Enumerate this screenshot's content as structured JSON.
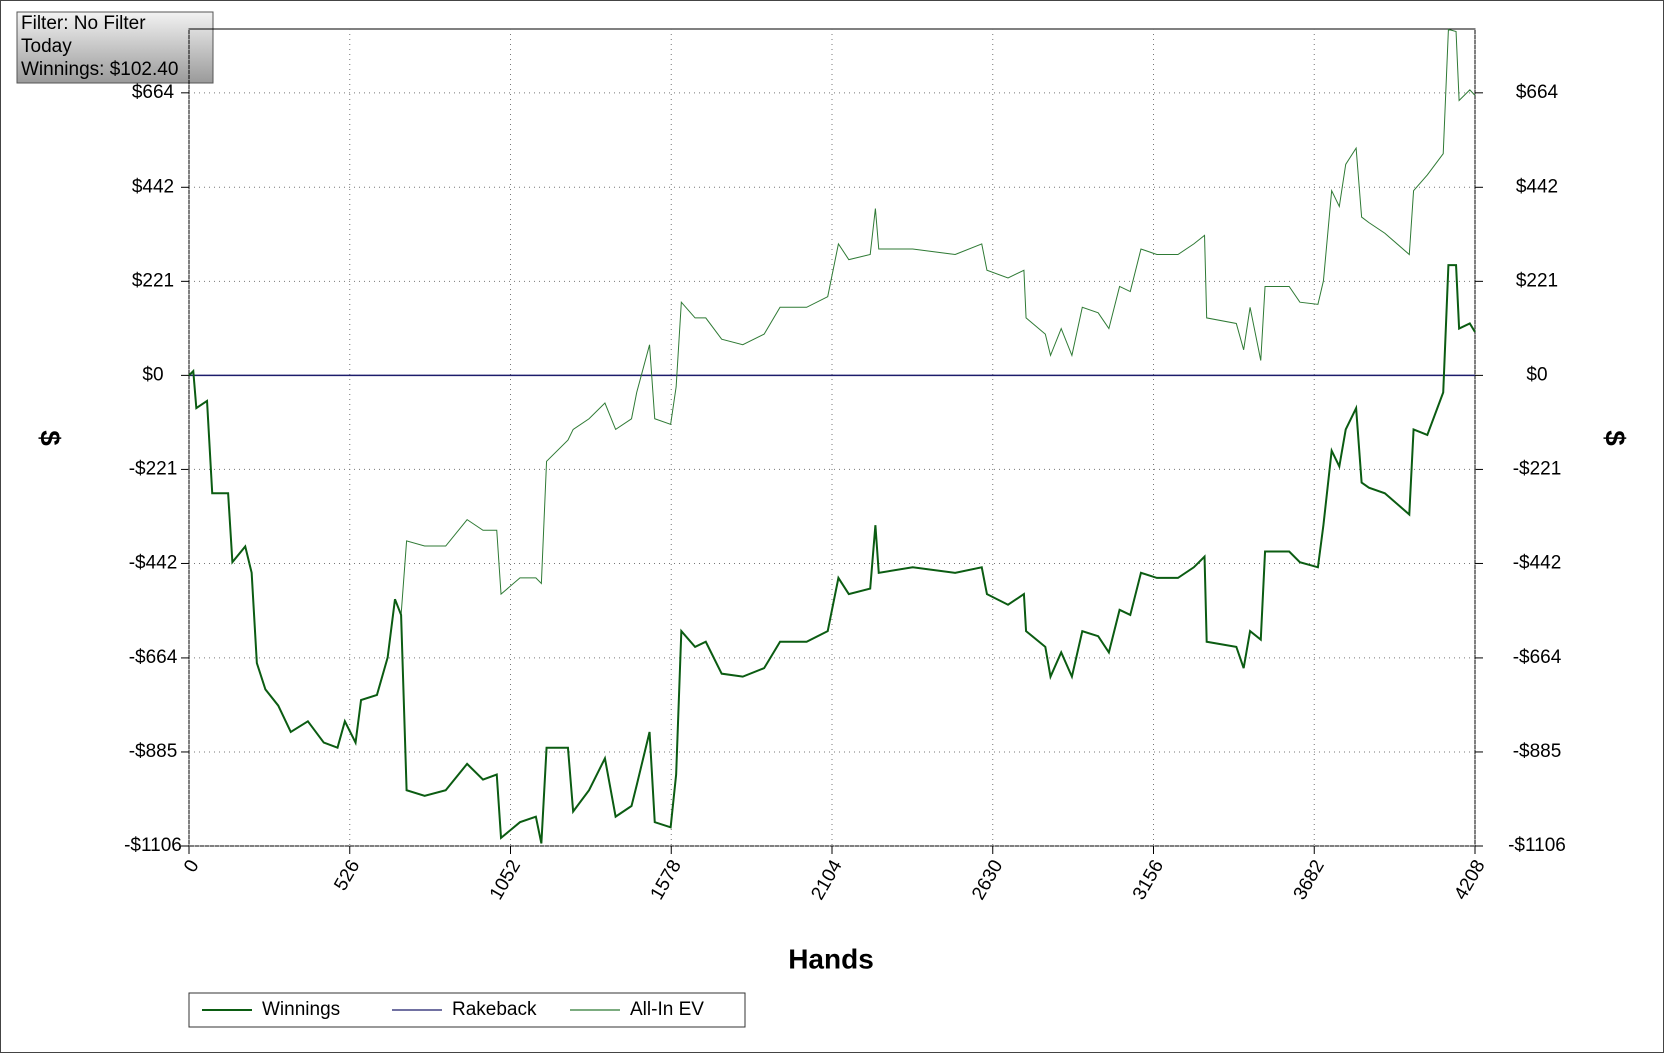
{
  "chart_data": {
    "type": "line",
    "annotation": [
      "Filter: No Filter",
      "Today",
      "Winnings: $102.40"
    ],
    "xlabel": "Hands",
    "ylabel": "$",
    "xlim": [
      0,
      4208
    ],
    "xticks": [
      0,
      526,
      1052,
      1578,
      2104,
      2630,
      3156,
      3682,
      4208
    ],
    "ylim": [
      -1106,
      814
    ],
    "yticks": [
      {
        "value": -1106,
        "label": "-$1106"
      },
      {
        "value": -885,
        "label": "-$885"
      },
      {
        "value": -664,
        "label": "-$664"
      },
      {
        "value": -442,
        "label": "-$442"
      },
      {
        "value": -221,
        "label": "-$221"
      },
      {
        "value": 0,
        "label": "$0"
      },
      {
        "value": 221,
        "label": "$221"
      },
      {
        "value": 442,
        "label": "$442"
      },
      {
        "value": 664,
        "label": "$664"
      }
    ],
    "grid": true,
    "x": [
      0,
      14,
      24,
      59,
      76,
      128,
      142,
      184,
      205,
      222,
      250,
      292,
      333,
      389,
      441,
      486,
      510,
      545,
      563,
      615,
      650,
      674,
      694,
      712,
      771,
      840,
      910,
      962,
      1007,
      1021,
      1083,
      1135,
      1153,
      1170,
      1240,
      1257,
      1309,
      1361,
      1396,
      1448,
      1465,
      1507,
      1524,
      1576,
      1594,
      1611,
      1656,
      1691,
      1743,
      1812,
      1882,
      1934,
      2021,
      2090,
      2125,
      2159,
      2229,
      2246,
      2257,
      2368,
      2507,
      2594,
      2611,
      2680,
      2732,
      2739,
      2802,
      2819,
      2854,
      2889,
      2923,
      2975,
      3010,
      3045,
      3080,
      3115,
      3167,
      3236,
      3288,
      3323,
      3330,
      3427,
      3451,
      3472,
      3507,
      3521,
      3600,
      3635,
      3694,
      3712,
      3739,
      3764,
      3785,
      3819,
      3837,
      3861,
      3913,
      3993,
      4007,
      4052,
      4104,
      4121,
      4146,
      4156,
      4191,
      4208
    ],
    "series": [
      {
        "name": "Winnings",
        "color": "#0b5c12",
        "values": [
          0,
          10,
          -77,
          -60,
          -277,
          -277,
          -439,
          -402,
          -464,
          -676,
          -738,
          -776,
          -838,
          -813,
          -863,
          -875,
          -813,
          -863,
          -763,
          -751,
          -663,
          -526,
          -563,
          -975,
          -988,
          -975,
          -913,
          -950,
          -938,
          -1087,
          -1050,
          -1037,
          -1100,
          -875,
          -875,
          -1025,
          -975,
          -900,
          -1037,
          -1012,
          -963,
          -838,
          -1050,
          -1062,
          -938,
          -601,
          -638,
          -626,
          -701,
          -708,
          -688,
          -626,
          -626,
          -601,
          -476,
          -514,
          -501,
          -352,
          -464,
          -451,
          -464,
          -451,
          -514,
          -539,
          -514,
          -601,
          -638,
          -708,
          -651,
          -708,
          -601,
          -613,
          -651,
          -551,
          -563,
          -464,
          -476,
          -476,
          -451,
          -426,
          -626,
          -638,
          -688,
          -601,
          -621,
          -414,
          -414,
          -439,
          -451,
          -352,
          -177,
          -214,
          -127,
          -77,
          -252,
          -264,
          -277,
          -327,
          -127,
          -140,
          -40,
          259,
          259,
          110,
          122,
          102
        ]
      },
      {
        "name": "Rakeback",
        "color": "#1c1c6b",
        "values": [
          0,
          0,
          0,
          0,
          0,
          0,
          0,
          0,
          0,
          0,
          0,
          0,
          0,
          0,
          0,
          0,
          0,
          0,
          0,
          0,
          0,
          0,
          0,
          0,
          0,
          0,
          0,
          0,
          0,
          0,
          0,
          0,
          0,
          0,
          0,
          0,
          0,
          0,
          0,
          0,
          0,
          0,
          0,
          0,
          0,
          0,
          0,
          0,
          0,
          0,
          0,
          0,
          0,
          0,
          0,
          0,
          0,
          0,
          0,
          0,
          0,
          0,
          0,
          0,
          0,
          0,
          0,
          0,
          0,
          0,
          0,
          0,
          0,
          0,
          0,
          0,
          0,
          0,
          0,
          0,
          0,
          0,
          0,
          0,
          0,
          0,
          0,
          0,
          0,
          0,
          0,
          0,
          0,
          0,
          0,
          0,
          0,
          0,
          0,
          0,
          0,
          0,
          0,
          0,
          0,
          0
        ]
      },
      {
        "name": "All-In EV",
        "color": "#2f7a35",
        "values": [
          0,
          10,
          -77,
          -60,
          -277,
          -277,
          -439,
          -402,
          -464,
          -676,
          -738,
          -776,
          -838,
          -813,
          -863,
          -875,
          -813,
          -863,
          -763,
          -751,
          -663,
          -526,
          -563,
          -389,
          -401,
          -401,
          -339,
          -364,
          -364,
          -514,
          -476,
          -476,
          -489,
          -202,
          -152,
          -127,
          -102,
          -65,
          -127,
          -102,
          -40,
          72,
          -102,
          -115,
          -27,
          172,
          135,
          135,
          85,
          72,
          97,
          160,
          160,
          185,
          309,
          272,
          284,
          392,
          297,
          297,
          284,
          309,
          247,
          229,
          247,
          135,
          97,
          47,
          110,
          47,
          160,
          147,
          110,
          209,
          197,
          297,
          284,
          284,
          309,
          329,
          135,
          122,
          60,
          160,
          35,
          209,
          209,
          172,
          167,
          222,
          434,
          397,
          496,
          534,
          372,
          359,
          334,
          284,
          434,
          471,
          521,
          813,
          808,
          646,
          671,
          658
        ]
      }
    ]
  }
}
